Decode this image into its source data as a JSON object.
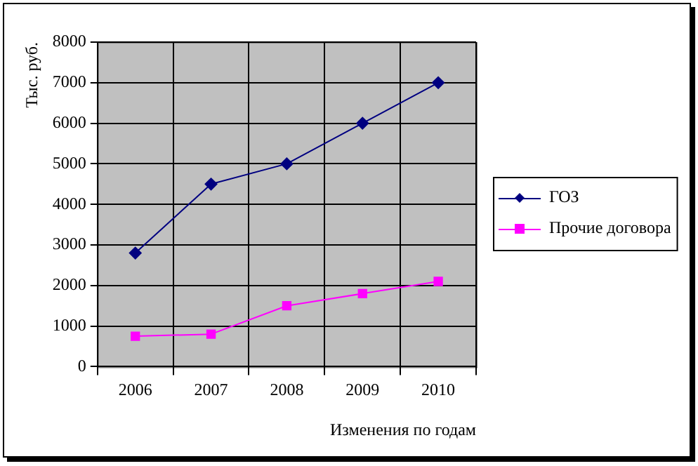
{
  "chart_data": {
    "type": "line",
    "ylabel": "Тыс. руб.",
    "xlabel": "Изменения по годам",
    "categories": [
      "2006",
      "2007",
      "2008",
      "2009",
      "2010"
    ],
    "series": [
      {
        "name": "ГОЗ",
        "color": "#000080",
        "marker": "diamond",
        "values": [
          2800,
          4500,
          5000,
          6000,
          7000
        ]
      },
      {
        "name": "Прочие договора",
        "color": "#ff00ff",
        "marker": "square",
        "values": [
          750,
          800,
          1500,
          1800,
          2100
        ]
      }
    ],
    "ylim": [
      0,
      8000
    ],
    "yticks": [
      0,
      1000,
      2000,
      3000,
      4000,
      5000,
      6000,
      7000,
      8000
    ],
    "grid": true,
    "legend": "right"
  }
}
